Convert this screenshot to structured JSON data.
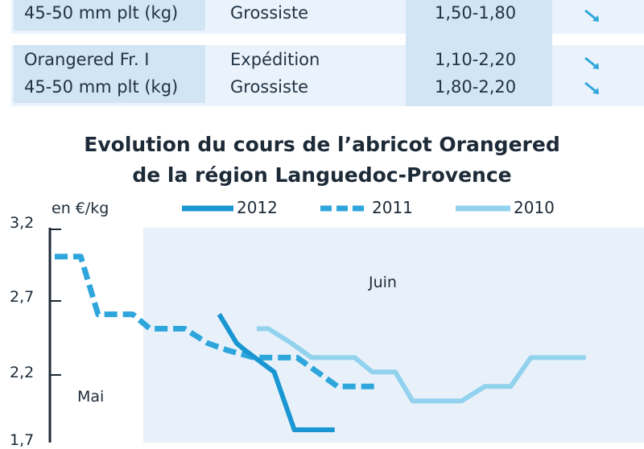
{
  "table": {
    "rows": [
      {
        "product": "45-50 mm plt (kg)",
        "stage": "Grossiste",
        "price": "1,50-1,80",
        "trend": "down"
      },
      {
        "product": "Orangered Fr. I",
        "stage": "Expédition",
        "price": "1,10-2,20",
        "trend": "down"
      },
      {
        "product": "45-50 mm plt (kg)",
        "stage": "Grossiste",
        "price": "1,80-2,20",
        "trend": "down"
      }
    ]
  },
  "chart_data": {
    "type": "line",
    "title_line1": "Evolution du cours de l’abricot Orangered",
    "title_line2": "de la région Languedoc-Provence",
    "ylabel": "en €/kg",
    "ylim": [
      1.7,
      3.2
    ],
    "yticks": [
      "3,2",
      "2,7",
      "2,2",
      "1,7"
    ],
    "regions": [
      {
        "label": "Mai"
      },
      {
        "label": "Juin"
      }
    ],
    "series": [
      {
        "name": "2012",
        "color": "#1a96d2",
        "style": "solid",
        "points": [
          [
            0.285,
            2.6
          ],
          [
            0.3,
            2.5
          ],
          [
            0.315,
            2.4
          ],
          [
            0.33,
            2.35
          ],
          [
            0.38,
            2.2
          ],
          [
            0.415,
            1.8
          ],
          [
            0.485,
            1.8
          ]
        ]
      },
      {
        "name": "2011",
        "color": "#2ea6dc",
        "style": "dashed",
        "points": [
          [
            0.0,
            3.0
          ],
          [
            0.045,
            3.0
          ],
          [
            0.075,
            2.6
          ],
          [
            0.135,
            2.6
          ],
          [
            0.165,
            2.5
          ],
          [
            0.225,
            2.5
          ],
          [
            0.265,
            2.4
          ],
          [
            0.3,
            2.35
          ],
          [
            0.345,
            2.3
          ],
          [
            0.42,
            2.3
          ],
          [
            0.455,
            2.2
          ],
          [
            0.49,
            2.1
          ],
          [
            0.56,
            2.1
          ]
        ]
      },
      {
        "name": "2010",
        "color": "#92d2ee",
        "style": "solid",
        "points": [
          [
            0.35,
            2.5
          ],
          [
            0.37,
            2.5
          ],
          [
            0.41,
            2.4
          ],
          [
            0.445,
            2.3
          ],
          [
            0.52,
            2.3
          ],
          [
            0.55,
            2.2
          ],
          [
            0.59,
            2.2
          ],
          [
            0.62,
            2.0
          ],
          [
            0.705,
            2.0
          ],
          [
            0.745,
            2.1
          ],
          [
            0.79,
            2.1
          ],
          [
            0.825,
            2.3
          ],
          [
            0.92,
            2.3
          ]
        ]
      }
    ],
    "legend": "top"
  }
}
